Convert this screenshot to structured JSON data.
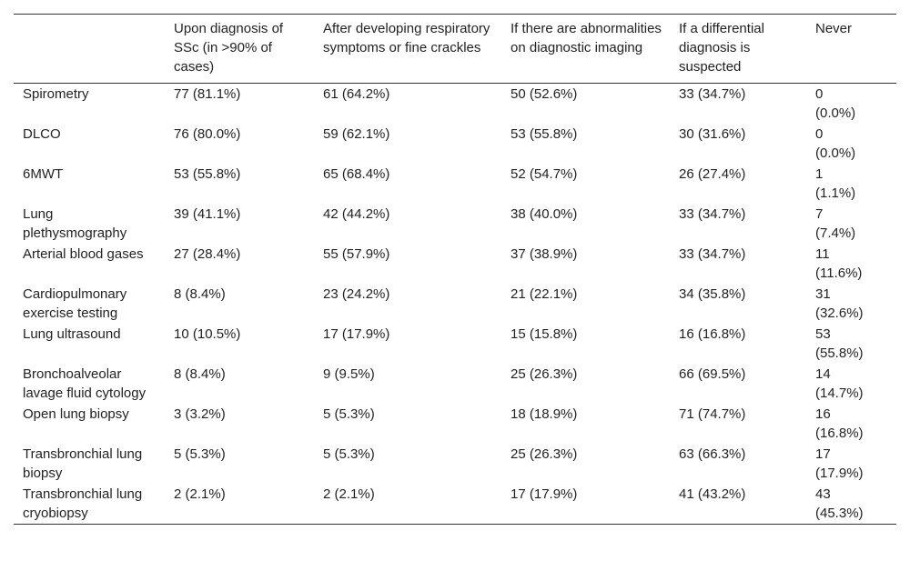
{
  "table": {
    "columns": [
      "Upon diagnosis of SSc (in >90% of cases)",
      "After developing respiratory symptoms or fine crackles",
      "If there are abnormalities on diagnostic imaging",
      "If a differential diagnosis is suspected",
      "Never"
    ],
    "rows": [
      [
        "Spirometry",
        "77 (81.1%)",
        "61 (64.2%)",
        "50 (52.6%)",
        "33 (34.7%)",
        "0 (0.0%)"
      ],
      [
        "DLCO",
        "76 (80.0%)",
        "59 (62.1%)",
        "53 (55.8%)",
        "30 (31.6%)",
        "0 (0.0%)"
      ],
      [
        "6MWT",
        "53 (55.8%)",
        "65 (68.4%)",
        "52 (54.7%)",
        "26 (27.4%)",
        "1 (1.1%)"
      ],
      [
        "Lung plethysmography",
        "39 (41.1%)",
        "42 (44.2%)",
        "38 (40.0%)",
        "33 (34.7%)",
        "7 (7.4%)"
      ],
      [
        "Arterial blood gases",
        "27 (28.4%)",
        "55 (57.9%)",
        "37 (38.9%)",
        "33 (34.7%)",
        "11 (11.6%)"
      ],
      [
        "Cardiopulmonary exercise testing",
        "8 (8.4%)",
        "23 (24.2%)",
        "21 (22.1%)",
        "34 (35.8%)",
        "31 (32.6%)"
      ],
      [
        "Lung ultrasound",
        "10 (10.5%)",
        "17 (17.9%)",
        "15 (15.8%)",
        "16 (16.8%)",
        "53 (55.8%)"
      ],
      [
        "Bronchoalveolar lavage fluid cytology",
        "8 (8.4%)",
        "9 (9.5%)",
        "25 (26.3%)",
        "66 (69.5%)",
        "14 (14.7%)"
      ],
      [
        "Open lung biopsy",
        "3 (3.2%)",
        "5 (5.3%)",
        "18 (18.9%)",
        "71 (74.7%)",
        "16 (16.8%)"
      ],
      [
        "Transbronchial lung biopsy",
        "5 (5.3%)",
        "5 (5.3%)",
        "25 (26.3%)",
        "63 (66.3%)",
        "17 (17.9%)"
      ],
      [
        "Transbronchial lung cryobiopsy",
        "2 (2.1%)",
        "2 (2.1%)",
        "17 (17.9%)",
        "41 (43.2%)",
        "43 (45.3%)"
      ]
    ]
  }
}
